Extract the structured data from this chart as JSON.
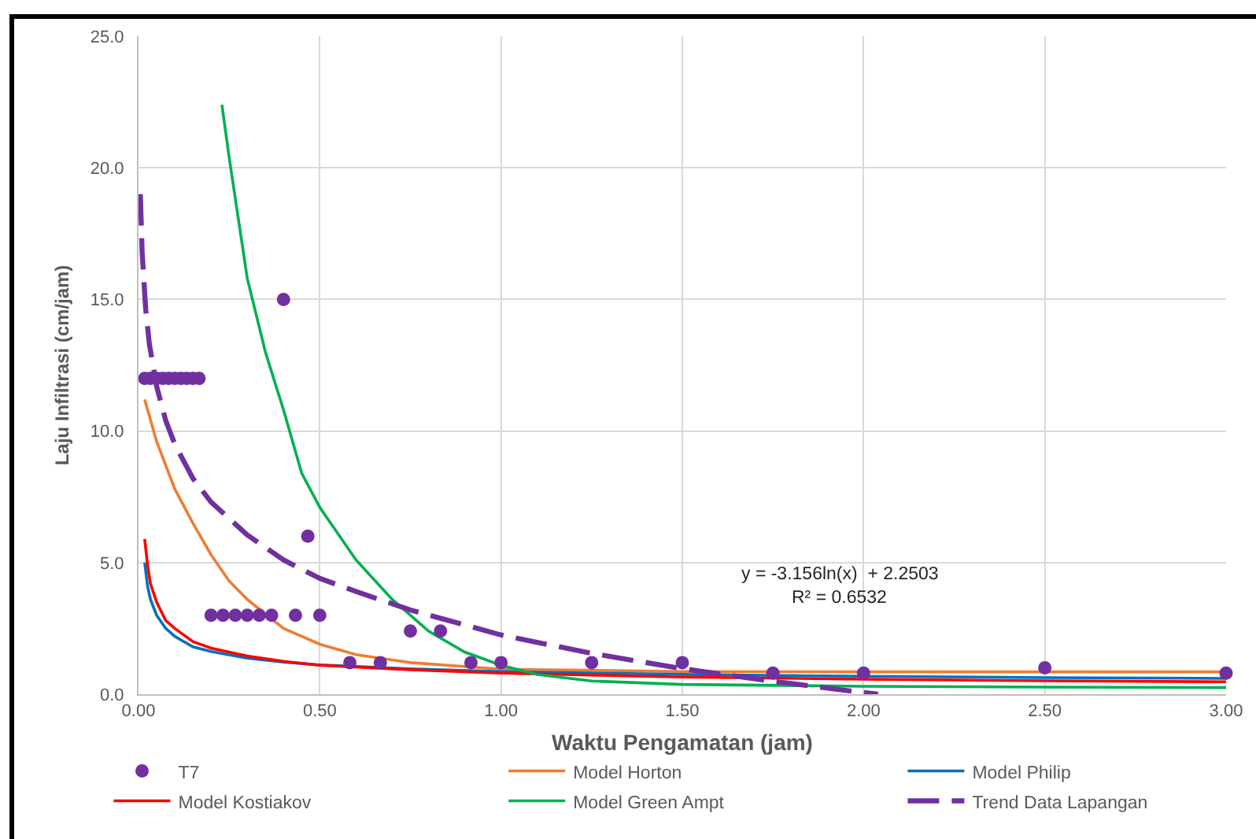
{
  "chart_data": {
    "type": "line",
    "xlabel": "Waktu Pengamatan (jam)",
    "ylabel": "Laju Infiltrasi (cm/jam)",
    "xlim": [
      0,
      3
    ],
    "xticks": [
      {
        "value": 0,
        "label": "0.00"
      },
      {
        "value": 0.5,
        "label": "0.50"
      },
      {
        "value": 1,
        "label": "1.00"
      },
      {
        "value": 1.5,
        "label": "1.50"
      },
      {
        "value": 2,
        "label": "2.00"
      },
      {
        "value": 2.5,
        "label": "2.50"
      },
      {
        "value": 3,
        "label": "3.00"
      }
    ],
    "ylim": [
      0,
      25
    ],
    "yticks": [
      {
        "value": 0,
        "label": "0.0"
      },
      {
        "value": 5,
        "label": "5.0"
      },
      {
        "value": 10,
        "label": "10.0"
      },
      {
        "value": 15,
        "label": "15.0"
      },
      {
        "value": 20,
        "label": "20.0"
      },
      {
        "value": 25,
        "label": "25.0"
      }
    ],
    "grid": true,
    "legend": "bottom",
    "annotations": [
      "y = -3.156ln(x)  + 2.2503",
      "R² = 0.6532"
    ],
    "series": [
      {
        "name": "T7",
        "type": "scatter",
        "marker": "circle",
        "color": "#7030a0",
        "x": [
          0.017,
          0.033,
          0.05,
          0.067,
          0.083,
          0.1,
          0.117,
          0.133,
          0.15,
          0.167,
          0.2,
          0.233,
          0.267,
          0.3,
          0.333,
          0.367,
          0.4,
          0.433,
          0.467,
          0.5,
          0.583,
          0.667,
          0.75,
          0.833,
          0.917,
          1.0,
          1.25,
          1.5,
          1.75,
          2.0,
          2.5,
          3.0
        ],
        "values": [
          12,
          12,
          12,
          12,
          12,
          12,
          12,
          12,
          12,
          12,
          3,
          3,
          3,
          3,
          3,
          3,
          15,
          3,
          6,
          3,
          1.2,
          1.2,
          2.4,
          2.4,
          1.2,
          1.2,
          1.2,
          1.2,
          0.8,
          0.8,
          1.0,
          0.8
        ]
      },
      {
        "name": "Model Horton",
        "type": "line",
        "color": "#ed7d31",
        "x": [
          0.017,
          0.05,
          0.1,
          0.15,
          0.2,
          0.25,
          0.3,
          0.4,
          0.5,
          0.6,
          0.75,
          1.0,
          1.5,
          2.0,
          3.0
        ],
        "values": [
          11.2,
          9.6,
          7.8,
          6.5,
          5.3,
          4.3,
          3.6,
          2.5,
          1.9,
          1.5,
          1.2,
          0.95,
          0.86,
          0.85,
          0.85
        ]
      },
      {
        "name": "Model Philip",
        "type": "line",
        "color": "#0070c0",
        "x": [
          0.017,
          0.025,
          0.033,
          0.05,
          0.075,
          0.1,
          0.15,
          0.2,
          0.3,
          0.4,
          0.5,
          0.75,
          1.0,
          1.5,
          2.0,
          2.5,
          3.0
        ],
        "values": [
          5.0,
          4.1,
          3.6,
          3.0,
          2.5,
          2.2,
          1.8,
          1.62,
          1.37,
          1.22,
          1.11,
          0.96,
          0.86,
          0.75,
          0.68,
          0.63,
          0.6
        ]
      },
      {
        "name": "Model Kostiakov",
        "type": "line",
        "color": "#ff0000",
        "x": [
          0.017,
          0.025,
          0.033,
          0.05,
          0.075,
          0.1,
          0.15,
          0.2,
          0.3,
          0.4,
          0.5,
          0.75,
          1.0,
          1.5,
          2.0,
          2.5,
          3.0
        ],
        "values": [
          5.9,
          4.9,
          4.2,
          3.5,
          2.8,
          2.5,
          2.0,
          1.75,
          1.45,
          1.25,
          1.1,
          0.93,
          0.8,
          0.65,
          0.57,
          0.51,
          0.47
        ]
      },
      {
        "name": "Model Green Ampt",
        "type": "line",
        "color": "#00b050",
        "x": [
          0.23,
          0.25,
          0.3,
          0.35,
          0.4,
          0.45,
          0.5,
          0.6,
          0.7,
          0.8,
          0.9,
          1.0,
          1.1,
          1.25,
          1.5,
          2.0,
          2.5,
          3.0
        ],
        "values": [
          22.4,
          20.4,
          15.8,
          13.0,
          10.8,
          8.4,
          7.1,
          5.1,
          3.6,
          2.4,
          1.6,
          1.1,
          0.75,
          0.5,
          0.37,
          0.3,
          0.27,
          0.25
        ]
      },
      {
        "name": "Trend Data Lapangan",
        "type": "line",
        "line_style": "dashed",
        "color": "#7030a0",
        "x": [
          0.005,
          0.01,
          0.02,
          0.03,
          0.05,
          0.075,
          0.1,
          0.15,
          0.2,
          0.3,
          0.4,
          0.5,
          0.6,
          0.75,
          1.0,
          1.25,
          1.5,
          1.75,
          2.0,
          2.04
        ],
        "values": [
          19.0,
          16.8,
          14.6,
          13.3,
          11.7,
          10.4,
          9.5,
          8.2,
          7.3,
          6.05,
          5.1,
          4.4,
          3.9,
          3.2,
          2.25,
          1.55,
          0.97,
          0.49,
          0.06,
          0
        ]
      }
    ]
  }
}
